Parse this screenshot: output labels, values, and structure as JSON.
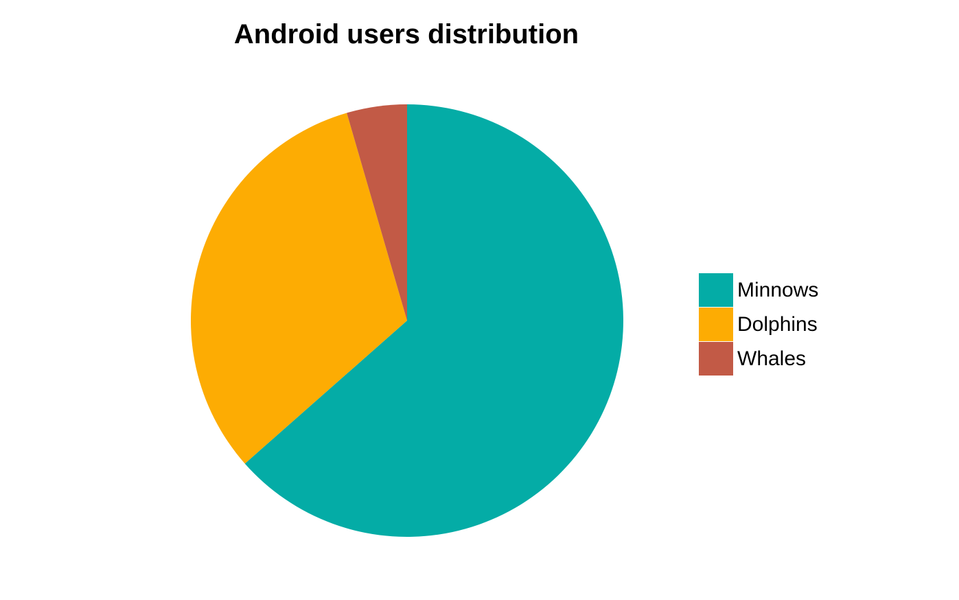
{
  "chart_data": {
    "type": "pie",
    "title": "Android users distribution",
    "categories": [
      "Minnows",
      "Dolphins",
      "Whales"
    ],
    "values": [
      63.5,
      32,
      4.5
    ],
    "colors": [
      "#04ACA6",
      "#FDAC03",
      "#C25A46"
    ],
    "legend_position": "right",
    "start_angle": "top, clockwise"
  }
}
